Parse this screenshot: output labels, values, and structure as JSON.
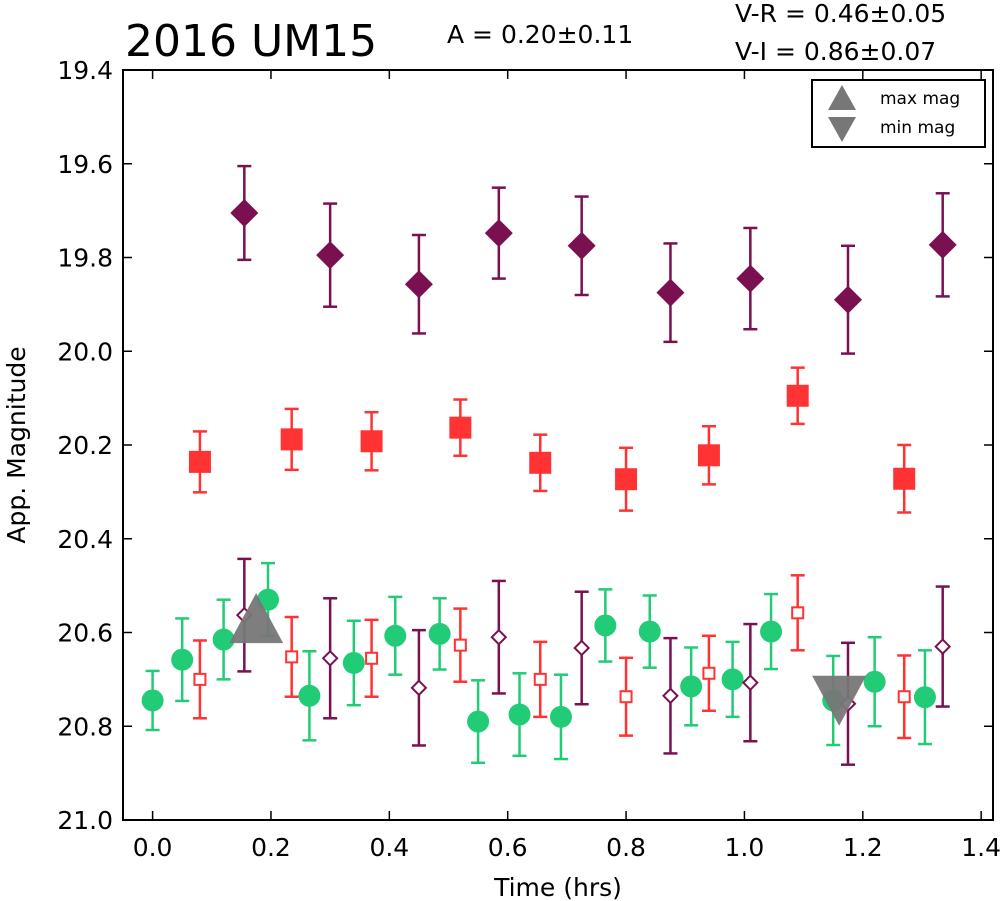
{
  "chart_data": {
    "type": "scatter",
    "title": "2016 UM15",
    "amplitude_label": "A  = 0.20±0.11",
    "color_labels": [
      "V-R = 0.46±0.05",
      "V-I  = 0.86±0.07"
    ],
    "xlabel": "Time (hrs)",
    "ylabel": "App. Magnitude",
    "xlim": [
      -0.05,
      1.42
    ],
    "ylim": [
      21.0,
      19.4
    ],
    "y_inverted": true,
    "xticks": [
      "0.0",
      "0.2",
      "0.4",
      "0.6",
      "0.8",
      "1.0",
      "1.2",
      "1.4"
    ],
    "yticks": [
      "19.4",
      "19.6",
      "19.8",
      "20.0",
      "20.2",
      "20.4",
      "20.6",
      "20.8",
      "21.0"
    ],
    "grid": false,
    "legend": {
      "placement": "top-right",
      "entries": [
        {
          "marker": "triangle-up",
          "label": "max mag"
        },
        {
          "marker": "triangle-down",
          "label": "min mag"
        }
      ]
    },
    "colors": {
      "purple": "#7a1050",
      "red": "#ff3333",
      "green": "#22cc77",
      "gray": "#777777"
    },
    "series": [
      {
        "marker": "diamond-filled",
        "color": "#7a1050",
        "x": [
          0.155,
          0.3,
          0.45,
          0.585,
          0.725,
          0.875,
          1.01,
          1.175,
          1.335
        ],
        "y": [
          19.705,
          19.795,
          19.857,
          19.748,
          19.775,
          19.875,
          19.845,
          19.89,
          19.773
        ],
        "yerr": [
          0.1,
          0.11,
          0.105,
          0.097,
          0.105,
          0.105,
          0.108,
          0.115,
          0.11
        ]
      },
      {
        "marker": "square-filled",
        "color": "#ff3333",
        "x": [
          0.08,
          0.235,
          0.37,
          0.52,
          0.655,
          0.8,
          0.94,
          1.09,
          1.27
        ],
        "y": [
          20.236,
          20.188,
          20.192,
          20.163,
          20.238,
          20.273,
          20.222,
          20.095,
          20.272
        ],
        "yerr": [
          0.065,
          0.065,
          0.062,
          0.06,
          0.06,
          0.067,
          0.062,
          0.06,
          0.072
        ]
      },
      {
        "marker": "circle-filled",
        "color": "#22cc77",
        "x": [
          0.0,
          0.05,
          0.12,
          0.195,
          0.265,
          0.34,
          0.41,
          0.485,
          0.55,
          0.62,
          0.69,
          0.765,
          0.84,
          0.91,
          0.98,
          1.045,
          1.15,
          1.22,
          1.305
        ],
        "y": [
          20.745,
          20.658,
          20.615,
          20.53,
          20.735,
          20.665,
          20.607,
          20.603,
          20.79,
          20.775,
          20.78,
          20.585,
          20.598,
          20.715,
          20.7,
          20.598,
          20.745,
          20.705,
          20.738
        ],
        "yerr": [
          0.063,
          0.088,
          0.085,
          0.078,
          0.095,
          0.09,
          0.083,
          0.076,
          0.088,
          0.088,
          0.09,
          0.077,
          0.077,
          0.083,
          0.08,
          0.08,
          0.095,
          0.095,
          0.1
        ]
      },
      {
        "marker": "square-open",
        "color": "#ff3333",
        "x": [
          0.08,
          0.235,
          0.37,
          0.52,
          0.655,
          0.8,
          0.94,
          1.09,
          1.27
        ],
        "y": [
          20.7,
          20.652,
          20.655,
          20.627,
          20.7,
          20.737,
          20.687,
          20.558,
          20.737
        ],
        "yerr": [
          0.083,
          0.085,
          0.082,
          0.078,
          0.08,
          0.083,
          0.08,
          0.08,
          0.088
        ]
      },
      {
        "marker": "diamond-open",
        "color": "#7a1050",
        "x": [
          0.155,
          0.3,
          0.45,
          0.585,
          0.725,
          0.875,
          1.01,
          1.175,
          1.335
        ],
        "y": [
          20.563,
          20.655,
          20.718,
          20.61,
          20.633,
          20.735,
          20.707,
          20.752,
          20.63
        ],
        "yerr": [
          0.12,
          0.128,
          0.123,
          0.12,
          0.12,
          0.123,
          0.125,
          0.13,
          0.128
        ]
      },
      {
        "marker": "triangle-up",
        "color": "#777777",
        "label": "max mag",
        "x": [
          0.175
        ],
        "y": [
          20.58
        ],
        "yerr": [
          0
        ]
      },
      {
        "marker": "triangle-down",
        "color": "#777777",
        "label": "min mag",
        "x": [
          1.16
        ],
        "y": [
          20.735
        ],
        "yerr": [
          0
        ]
      }
    ]
  }
}
